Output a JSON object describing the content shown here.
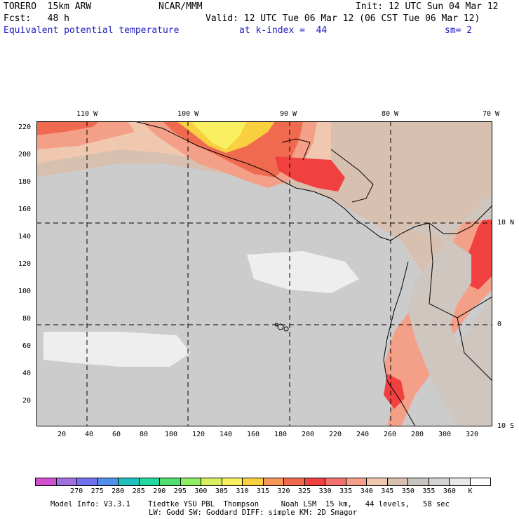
{
  "header": {
    "line1_left": "TORERO  15km ARW",
    "line1_mid": "NCAR/MMM",
    "line1_right": "Init: 12 UTC Sun 04 Mar 12",
    "line2_left": "Fcst:   48 h",
    "line2_right": "Valid: 12 UTC Tue 06 Mar 12 (06 CST Tue 06 Mar 12)",
    "line3_field": "Equivalent potential temperature",
    "line3_level": "at k-index =  44",
    "line3_smooth": "sm= 2"
  },
  "top_ticks": [
    "110 W",
    "100 W",
    "90 W",
    "80 W",
    "70 W"
  ],
  "right_lat_labels": [
    "10 N",
    "0",
    "10 S"
  ],
  "y_axis_ticks": [
    "220",
    "200",
    "180",
    "160",
    "140",
    "120",
    "100",
    "80",
    "60",
    "40",
    "20"
  ],
  "x_axis_ticks": [
    "20",
    "40",
    "60",
    "80",
    "100",
    "120",
    "140",
    "160",
    "180",
    "200",
    "220",
    "240",
    "260",
    "280",
    "300",
    "320"
  ],
  "colorbar": {
    "colors": [
      "#d050d0",
      "#a070e0",
      "#7070f0",
      "#5090e8",
      "#20c0c0",
      "#20d8a0",
      "#50e070",
      "#90ec60",
      "#d8f060",
      "#f8f060",
      "#f8d040",
      "#f89858",
      "#f06a50",
      "#f04040",
      "#f27070",
      "#f4a088",
      "#f0c8b0",
      "#d8c0b0",
      "#c8c4c0",
      "#d4d4d4",
      "#e8e8e8",
      "#ffffff"
    ],
    "labels": [
      "270",
      "275",
      "280",
      "285",
      "290",
      "295",
      "300",
      "305",
      "310",
      "315",
      "320",
      "325",
      "330",
      "335",
      "340",
      "345",
      "350",
      "355",
      "360",
      "K"
    ]
  },
  "footer": {
    "line1": "Model Info: V3.3.1    Tiedtke YSU PBL  Thompson     Noah LSM  15 km,   44 levels,   58 sec",
    "line2": "LW: Godd SW: Goddard DIFF: simple KM: 2D Smagor"
  }
}
